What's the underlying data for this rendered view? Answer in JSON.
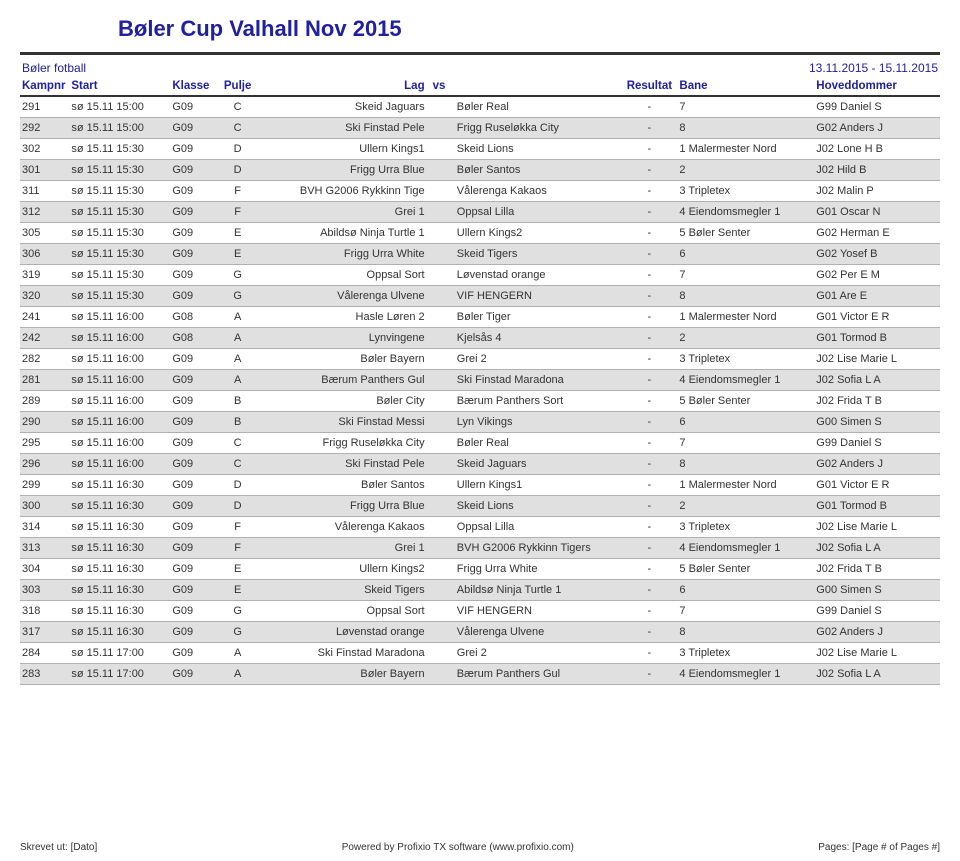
{
  "title": "Bøler Cup Valhall Nov 2015",
  "subhead_left": "Bøler fotball",
  "subhead_right": "13.11.2015 - 15.11.2015",
  "columns": {
    "kampnr": "Kampnr",
    "start": "Start",
    "klasse": "Klasse",
    "pulje": "Pulje",
    "home": "Lag",
    "vs": "vs",
    "away": "",
    "res": "Resultat",
    "bane": "Bane",
    "ref": "Hoveddommer"
  },
  "rows": [
    {
      "kampnr": "291",
      "start": "sø 15.11 15:00",
      "klasse": "G09",
      "pulje": "C",
      "home": "Skeid Jaguars",
      "away": "Bøler Real",
      "res": "-",
      "bane": "7",
      "ref": "G99 Daniel S"
    },
    {
      "kampnr": "292",
      "start": "sø 15.11 15:00",
      "klasse": "G09",
      "pulje": "C",
      "home": "Ski Finstad Pele",
      "away": "Frigg Ruseløkka City",
      "res": "-",
      "bane": "8",
      "ref": "G02 Anders J"
    },
    {
      "kampnr": "302",
      "start": "sø 15.11 15:30",
      "klasse": "G09",
      "pulje": "D",
      "home": "Ullern Kings1",
      "away": "Skeid Lions",
      "res": "-",
      "bane": "1 Malermester Nord",
      "ref": "J02 Lone H B"
    },
    {
      "kampnr": "301",
      "start": "sø 15.11 15:30",
      "klasse": "G09",
      "pulje": "D",
      "home": "Frigg Urra Blue",
      "away": "Bøler Santos",
      "res": "-",
      "bane": "2",
      "ref": "J02 Hild B"
    },
    {
      "kampnr": "311",
      "start": "sø 15.11 15:30",
      "klasse": "G09",
      "pulje": "F",
      "home": "BVH G2006 Rykkinn Tige",
      "away": "Vålerenga Kakaos",
      "res": "-",
      "bane": "3 Tripletex",
      "ref": "J02 Malin P"
    },
    {
      "kampnr": "312",
      "start": "sø 15.11 15:30",
      "klasse": "G09",
      "pulje": "F",
      "home": "Grei 1",
      "away": "Oppsal Lilla",
      "res": "-",
      "bane": "4 Eiendomsmegler 1",
      "ref": "G01 Oscar N"
    },
    {
      "kampnr": "305",
      "start": "sø 15.11 15:30",
      "klasse": "G09",
      "pulje": "E",
      "home": "Abildsø Ninja Turtle 1",
      "away": "Ullern Kings2",
      "res": "-",
      "bane": "5 Bøler Senter",
      "ref": "G02 Herman E"
    },
    {
      "kampnr": "306",
      "start": "sø 15.11 15:30",
      "klasse": "G09",
      "pulje": "E",
      "home": "Frigg Urra White",
      "away": "Skeid Tigers",
      "res": "-",
      "bane": "6",
      "ref": "G02 Yosef B"
    },
    {
      "kampnr": "319",
      "start": "sø 15.11 15:30",
      "klasse": "G09",
      "pulje": "G",
      "home": "Oppsal Sort",
      "away": "Løvenstad orange",
      "res": "-",
      "bane": "7",
      "ref": "G02 Per E M"
    },
    {
      "kampnr": "320",
      "start": "sø 15.11 15:30",
      "klasse": "G09",
      "pulje": "G",
      "home": "Vålerenga Ulvene",
      "away": "VIF HENGERN",
      "res": "-",
      "bane": "8",
      "ref": "G01 Are E"
    },
    {
      "kampnr": "241",
      "start": "sø 15.11 16:00",
      "klasse": "G08",
      "pulje": "A",
      "home": "Hasle Løren 2",
      "away": "Bøler Tiger",
      "res": "-",
      "bane": "1 Malermester Nord",
      "ref": "G01 Victor E R"
    },
    {
      "kampnr": "242",
      "start": "sø 15.11 16:00",
      "klasse": "G08",
      "pulje": "A",
      "home": "Lynvingene",
      "away": "Kjelsås 4",
      "res": "-",
      "bane": "2",
      "ref": "G01 Tormod B"
    },
    {
      "kampnr": "282",
      "start": "sø 15.11 16:00",
      "klasse": "G09",
      "pulje": "A",
      "home": "Bøler Bayern",
      "away": "Grei 2",
      "res": "-",
      "bane": "3 Tripletex",
      "ref": "J02 Lise Marie L"
    },
    {
      "kampnr": "281",
      "start": "sø 15.11 16:00",
      "klasse": "G09",
      "pulje": "A",
      "home": "Bærum Panthers Gul",
      "away": "Ski Finstad Maradona",
      "res": "-",
      "bane": "4 Eiendomsmegler 1",
      "ref": "J02 Sofia L A"
    },
    {
      "kampnr": "289",
      "start": "sø 15.11 16:00",
      "klasse": "G09",
      "pulje": "B",
      "home": "Bøler City",
      "away": "Bærum Panthers Sort",
      "res": "-",
      "bane": "5 Bøler Senter",
      "ref": "J02 Frida T B"
    },
    {
      "kampnr": "290",
      "start": "sø 15.11 16:00",
      "klasse": "G09",
      "pulje": "B",
      "home": "Ski Finstad Messi",
      "away": "Lyn Vikings",
      "res": "-",
      "bane": "6",
      "ref": "G00 Simen S"
    },
    {
      "kampnr": "295",
      "start": "sø 15.11 16:00",
      "klasse": "G09",
      "pulje": "C",
      "home": "Frigg Ruseløkka City",
      "away": "Bøler Real",
      "res": "-",
      "bane": "7",
      "ref": "G99 Daniel S"
    },
    {
      "kampnr": "296",
      "start": "sø 15.11 16:00",
      "klasse": "G09",
      "pulje": "C",
      "home": "Ski Finstad Pele",
      "away": "Skeid Jaguars",
      "res": "-",
      "bane": "8",
      "ref": "G02 Anders J"
    },
    {
      "kampnr": "299",
      "start": "sø 15.11 16:30",
      "klasse": "G09",
      "pulje": "D",
      "home": "Bøler Santos",
      "away": "Ullern Kings1",
      "res": "-",
      "bane": "1 Malermester Nord",
      "ref": "G01 Victor E R"
    },
    {
      "kampnr": "300",
      "start": "sø 15.11 16:30",
      "klasse": "G09",
      "pulje": "D",
      "home": "Frigg Urra Blue",
      "away": "Skeid Lions",
      "res": "-",
      "bane": "2",
      "ref": "G01 Tormod B"
    },
    {
      "kampnr": "314",
      "start": "sø 15.11 16:30",
      "klasse": "G09",
      "pulje": "F",
      "home": "Vålerenga Kakaos",
      "away": "Oppsal Lilla",
      "res": "-",
      "bane": "3 Tripletex",
      "ref": "J02 Lise Marie L"
    },
    {
      "kampnr": "313",
      "start": "sø 15.11 16:30",
      "klasse": "G09",
      "pulje": "F",
      "home": "Grei 1",
      "away": "BVH G2006 Rykkinn Tigers",
      "res": "-",
      "bane": "4 Eiendomsmegler 1",
      "ref": "J02 Sofia L A"
    },
    {
      "kampnr": "304",
      "start": "sø 15.11 16:30",
      "klasse": "G09",
      "pulje": "E",
      "home": "Ullern Kings2",
      "away": "Frigg Urra White",
      "res": "-",
      "bane": "5 Bøler Senter",
      "ref": "J02 Frida T B"
    },
    {
      "kampnr": "303",
      "start": "sø 15.11 16:30",
      "klasse": "G09",
      "pulje": "E",
      "home": "Skeid Tigers",
      "away": "Abildsø Ninja Turtle 1",
      "res": "-",
      "bane": "6",
      "ref": "G00 Simen S"
    },
    {
      "kampnr": "318",
      "start": "sø 15.11 16:30",
      "klasse": "G09",
      "pulje": "G",
      "home": "Oppsal Sort",
      "away": "VIF HENGERN",
      "res": "-",
      "bane": "7",
      "ref": "G99 Daniel S"
    },
    {
      "kampnr": "317",
      "start": "sø 15.11 16:30",
      "klasse": "G09",
      "pulje": "G",
      "home": "Løvenstad orange",
      "away": "Vålerenga Ulvene",
      "res": "-",
      "bane": "8",
      "ref": "G02 Anders J"
    },
    {
      "kampnr": "284",
      "start": "sø 15.11 17:00",
      "klasse": "G09",
      "pulje": "A",
      "home": "Ski Finstad Maradona",
      "away": "Grei 2",
      "res": "-",
      "bane": "3 Tripletex",
      "ref": "J02 Lise Marie L"
    },
    {
      "kampnr": "283",
      "start": "sø 15.11 17:00",
      "klasse": "G09",
      "pulje": "A",
      "home": "Bøler Bayern",
      "away": "Bærum Panthers Gul",
      "res": "-",
      "bane": "4 Eiendomsmegler 1",
      "ref": "J02 Sofia L A"
    }
  ],
  "footer_left": "Skrevet ut:  [Dato]",
  "footer_center": "Powered by Profixio TX software (www.profixio.com)",
  "footer_right": "Pages: [Page # of Pages #]"
}
